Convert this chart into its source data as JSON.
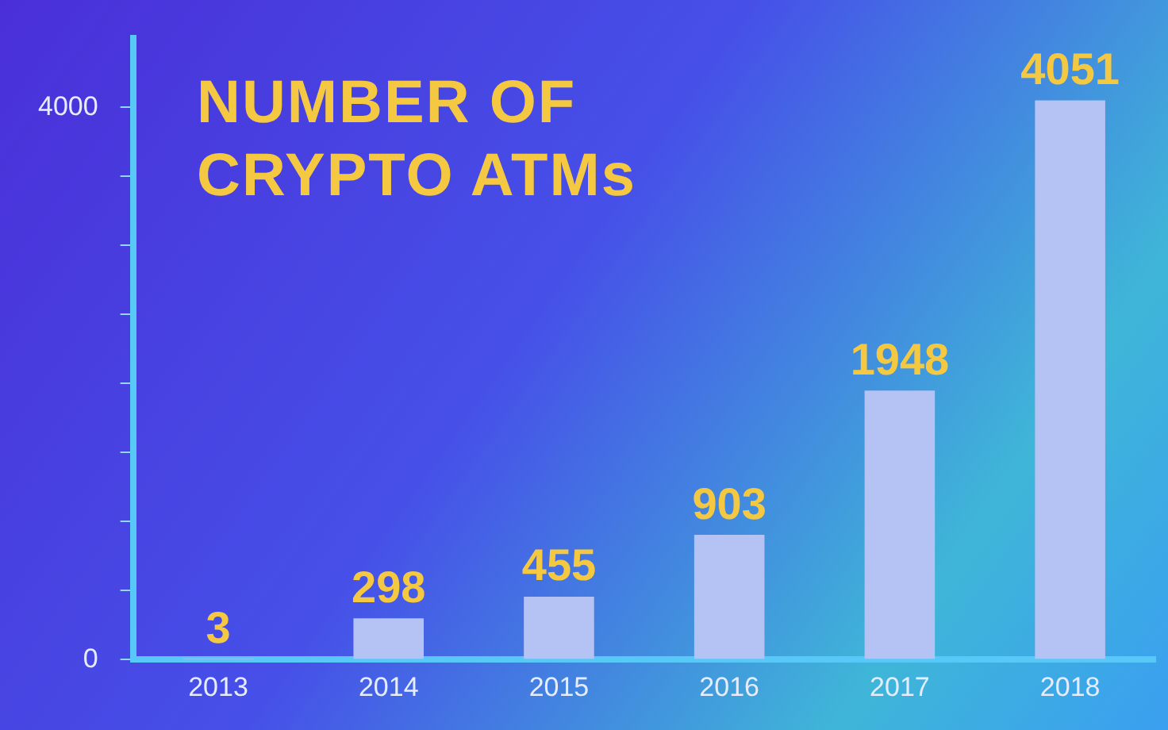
{
  "chart_data": {
    "type": "bar",
    "title": "NUMBER OF CRYPTO ATMs",
    "categories": [
      "2013",
      "2014",
      "2015",
      "2016",
      "2017",
      "2018"
    ],
    "values": [
      3,
      298,
      455,
      903,
      1948,
      4051
    ],
    "color": "#b4c2f4",
    "ylim": [
      0,
      4500
    ],
    "yticks": [
      0,
      {
        "value": 500,
        "label": null
      },
      {
        "value": 1000,
        "label": null
      },
      {
        "value": 1500,
        "label": null
      },
      {
        "value": 2000,
        "label": null
      },
      {
        "value": 2500,
        "label": null
      },
      {
        "value": 3000,
        "label": null
      },
      {
        "value": 3500,
        "label": null
      },
      4000
    ],
    "grid": false,
    "legend": false,
    "data_labels": true
  }
}
